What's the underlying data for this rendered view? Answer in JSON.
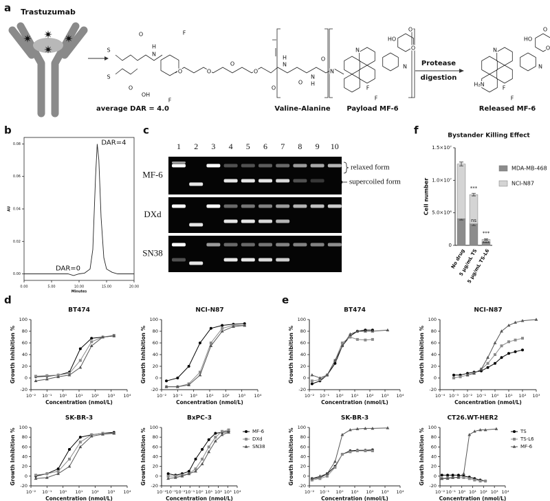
{
  "panel_labels": [
    "a",
    "b",
    "c",
    "d",
    "e",
    "f"
  ],
  "scheme": {
    "antibody": "Trastuzumab",
    "dar": "average DAR = 4.0",
    "linker": "Valine-Alanine",
    "payload": "Payload MF-6",
    "protease": "Protease",
    "digestion": "digestion",
    "released": "Released MF-6",
    "atoms": [
      "S",
      "S",
      "O",
      "H",
      "N",
      "OH",
      "O",
      "F",
      "F",
      "O",
      "O",
      "O",
      "O",
      "O",
      "H",
      "N",
      "O",
      "O",
      "H",
      "N",
      "N",
      "N",
      "N",
      "HO",
      "O",
      "O",
      "F",
      "F",
      "N",
      "N",
      "HO",
      "O",
      "O",
      "H₂N",
      "F",
      "F"
    ]
  },
  "gel": {
    "lanes": [
      "1",
      "2",
      "3",
      "4",
      "5",
      "6",
      "7",
      "8",
      "9",
      "10"
    ],
    "rows": [
      "MF-6",
      "DXd",
      "SN38"
    ],
    "relaxed": "relaxed form",
    "supercoiled": "supercoiled form"
  },
  "chart_data": [
    {
      "type": "line",
      "frame": true,
      "xlabel": "Minutes",
      "ylabel": "AU",
      "annotations": [
        "DAR=4",
        "DAR=0"
      ],
      "x": [
        0,
        1,
        2,
        3,
        4,
        5,
        6,
        7,
        8,
        9,
        10,
        11,
        12,
        12.5,
        13,
        13.3,
        13.6,
        14,
        14.5,
        15,
        16,
        17,
        18,
        19,
        20
      ],
      "series": [
        {
          "color": "#222222",
          "values": [
            0,
            0,
            0,
            0,
            0,
            0,
            0,
            0,
            0,
            -0.001,
            0,
            0.0005,
            0.003,
            0.015,
            0.06,
            0.08,
            0.07,
            0.035,
            0.01,
            0.003,
            0.001,
            0,
            0,
            0,
            0
          ]
        }
      ],
      "xlim": [
        0,
        20
      ],
      "ylim": [
        -0.004,
        0.084
      ],
      "xticks": [
        {
          "value": 0,
          "label": "0.00"
        },
        {
          "value": 5,
          "label": "5.00"
        },
        {
          "value": 10,
          "label": "10.00"
        },
        {
          "value": 15,
          "label": "15.00"
        },
        {
          "value": 20,
          "label": "20.00"
        }
      ],
      "yticks": [
        {
          "value": 0,
          "label": "0.00"
        },
        {
          "value": 0.02,
          "label": "0.02"
        },
        {
          "value": 0.04,
          "label": "0.04"
        },
        {
          "value": 0.06,
          "label": "0.06"
        },
        {
          "value": 0.08,
          "label": "0.08"
        }
      ]
    },
    {
      "type": "bar",
      "stacked": true,
      "title": "Bystander Killing Effect",
      "ylabel": "Cell number",
      "categories": [
        "No drug",
        "5 μg/mL TS",
        "5 μg/mL TS-L6"
      ],
      "series": [
        {
          "name": "MDA-MB-468",
          "color": "#8c8c8c",
          "values": [
            4100000,
            3300000,
            500000
          ],
          "errors": [
            200000,
            250000,
            50000
          ]
        },
        {
          "name": "NCI-N87",
          "color": "#d4d4d4",
          "values": [
            8400000,
            4500000,
            400000
          ],
          "errors": [
            300000,
            200000,
            100000
          ]
        }
      ],
      "ylim": [
        0,
        15000000
      ],
      "yticks": [
        0,
        {
          "value": 5000000,
          "label": "5.0×10⁶"
        },
        {
          "value": 10000000,
          "label": "1.0×10⁷"
        },
        {
          "value": 15000000,
          "label": "1.5×10⁷"
        }
      ],
      "annotations": [
        "***",
        "ns",
        "***",
        "***"
      ]
    },
    {
      "type": "line",
      "title": "BT474",
      "xscale": "log",
      "xlabel": "Concentration (nmol/L)",
      "ylabel": "Growth Inhibition %",
      "x": [
        0.02,
        0.1,
        0.5,
        2.5,
        12,
        60,
        300,
        1500
      ],
      "series": [
        {
          "color": "#000000",
          "marker": "circle",
          "values": [
            2,
            3,
            5,
            10,
            50,
            68,
            70,
            72
          ]
        },
        {
          "color": "#8a8a8a",
          "marker": "square",
          "values": [
            3,
            4,
            5,
            8,
            30,
            62,
            70,
            73
          ]
        },
        {
          "color": "#555555",
          "marker": "triangle",
          "values": [
            -5,
            -2,
            2,
            5,
            18,
            55,
            70,
            72
          ]
        }
      ],
      "xlim": [
        0.01,
        10000
      ],
      "ylim": [
        -20,
        100
      ],
      "xticks": [
        {
          "value": 0.01,
          "label": "10⁻²"
        },
        {
          "value": 0.1,
          "label": "10⁻¹"
        },
        {
          "value": 1,
          "label": "10⁰"
        },
        {
          "value": 10,
          "label": "10¹"
        },
        {
          "value": 100,
          "label": "10²"
        },
        {
          "value": 1000,
          "label": "10³"
        },
        {
          "value": 10000,
          "label": "10⁴"
        }
      ],
      "yticks": [
        -20,
        0,
        20,
        40,
        60,
        80,
        100
      ]
    },
    {
      "type": "line",
      "title": "NCI-N87",
      "xscale": "log",
      "xlabel": "Concentration (nmol/L)",
      "ylabel": "Growth Inhibition %",
      "x": [
        0.02,
        0.1,
        0.5,
        2.5,
        12,
        60,
        300,
        1500
      ],
      "series": [
        {
          "color": "#000000",
          "marker": "circle",
          "values": [
            -5,
            0,
            20,
            60,
            85,
            90,
            92,
            93
          ]
        },
        {
          "color": "#8a8a8a",
          "marker": "square",
          "values": [
            -15,
            -15,
            -10,
            10,
            60,
            85,
            90,
            90
          ]
        },
        {
          "color": "#555555",
          "marker": "triangle",
          "values": [
            -15,
            -15,
            -12,
            5,
            55,
            80,
            88,
            90
          ]
        }
      ],
      "xlim": [
        0.01,
        10000
      ],
      "ylim": [
        -20,
        100
      ],
      "xticks": [
        {
          "value": 0.01,
          "label": "10⁻²"
        },
        {
          "value": 0.1,
          "label": "10⁻¹"
        },
        {
          "value": 1,
          "label": "10⁰"
        },
        {
          "value": 10,
          "label": "10¹"
        },
        {
          "value": 100,
          "label": "10²"
        },
        {
          "value": 1000,
          "label": "10³"
        },
        {
          "value": 10000,
          "label": "10⁴"
        }
      ],
      "yticks": [
        -20,
        0,
        20,
        40,
        60,
        80,
        100
      ]
    },
    {
      "type": "line",
      "title": "SK-BR-3",
      "xscale": "log",
      "xlabel": "Concentration (nmol/L)",
      "ylabel": "Growth Inhibition %",
      "x": [
        0.02,
        0.1,
        0.5,
        2.5,
        12,
        60,
        300,
        1500
      ],
      "series": [
        {
          "color": "#000000",
          "marker": "circle",
          "values": [
            0,
            5,
            15,
            55,
            80,
            85,
            88,
            90
          ]
        },
        {
          "color": "#8a8a8a",
          "marker": "square",
          "values": [
            2,
            5,
            10,
            35,
            70,
            85,
            88,
            88
          ]
        },
        {
          "color": "#555555",
          "marker": "triangle",
          "values": [
            -5,
            -3,
            5,
            20,
            60,
            82,
            86,
            88
          ]
        }
      ],
      "xlim": [
        0.01,
        10000
      ],
      "ylim": [
        -20,
        100
      ],
      "xticks": [
        {
          "value": 0.01,
          "label": "10⁻²"
        },
        {
          "value": 0.1,
          "label": "10⁻¹"
        },
        {
          "value": 1,
          "label": "10⁰"
        },
        {
          "value": 10,
          "label": "10¹"
        },
        {
          "value": 100,
          "label": "10²"
        },
        {
          "value": 1000,
          "label": "10³"
        },
        {
          "value": 10000,
          "label": "10⁴"
        }
      ],
      "yticks": [
        -20,
        0,
        20,
        40,
        60,
        80,
        100
      ]
    },
    {
      "type": "line",
      "title": "BxPC-3",
      "xscale": "log",
      "xlabel": "Concentration (nmol/L)",
      "ylabel": "Growth Inhibition %",
      "legend": "right",
      "x": [
        0.0005,
        0.003,
        0.015,
        0.08,
        0.4,
        2,
        10,
        50,
        250,
        1250
      ],
      "series": [
        {
          "name": "MF-6",
          "color": "#000000",
          "marker": "circle",
          "values": [
            5,
            2,
            5,
            10,
            35,
            55,
            75,
            88,
            90,
            92
          ]
        },
        {
          "name": "DXd",
          "color": "#8a8a8a",
          "marker": "square",
          "values": [
            0,
            0,
            2,
            5,
            15,
            35,
            60,
            80,
            92,
            95
          ]
        },
        {
          "name": "SN38",
          "color": "#555555",
          "marker": "triangle",
          "values": [
            -5,
            -3,
            0,
            5,
            10,
            25,
            50,
            72,
            85,
            90
          ]
        }
      ],
      "xlim": [
        0.0001,
        10000
      ],
      "ylim": [
        -20,
        100
      ],
      "xticks": [
        {
          "value": 0.0001,
          "label": "10⁻⁴"
        },
        {
          "value": 0.001,
          "label": "10⁻³"
        },
        {
          "value": 0.01,
          "label": "10⁻²"
        },
        {
          "value": 0.1,
          "label": "10⁻¹"
        },
        {
          "value": 1,
          "label": "10⁰"
        },
        {
          "value": 10,
          "label": "10¹"
        },
        {
          "value": 100,
          "label": "10²"
        },
        {
          "value": 1000,
          "label": "10³"
        },
        {
          "value": 10000,
          "label": "10⁴"
        }
      ],
      "yticks": [
        -20,
        0,
        20,
        40,
        60,
        80,
        100
      ]
    },
    {
      "type": "line",
      "title": "BT474",
      "xscale": "log",
      "xlabel": "Concentration (nmol/L)",
      "ylabel": "Growth Inhibition %",
      "x": [
        0.015,
        0.05,
        0.15,
        0.5,
        1.5,
        5,
        15,
        50,
        150,
        1500
      ],
      "series": [
        {
          "color": "#000000",
          "marker": "circle",
          "values": [
            -10,
            -5,
            5,
            25,
            55,
            72,
            80,
            82,
            82,
            null
          ]
        },
        {
          "color": "#8a8a8a",
          "marker": "square",
          "values": [
            -5,
            -3,
            5,
            30,
            60,
            70,
            66,
            65,
            66,
            null
          ]
        },
        {
          "color": "#555555",
          "marker": "triangle",
          "values": [
            5,
            0,
            5,
            30,
            55,
            75,
            80,
            80,
            80,
            82
          ]
        }
      ],
      "xlim": [
        0.01,
        10000
      ],
      "ylim": [
        -20,
        100
      ],
      "xticks": [
        {
          "value": 0.01,
          "label": "10⁻²"
        },
        {
          "value": 0.1,
          "label": "10⁻¹"
        },
        {
          "value": 1,
          "label": "10⁰"
        },
        {
          "value": 10,
          "label": "10¹"
        },
        {
          "value": 100,
          "label": "10²"
        },
        {
          "value": 1000,
          "label": "10³"
        },
        {
          "value": 10000,
          "label": "10⁴"
        }
      ],
      "yticks": [
        -20,
        0,
        20,
        40,
        60,
        80,
        100
      ]
    },
    {
      "type": "line",
      "title": "NCI-N87",
      "xscale": "log",
      "xlabel": "Concentration (nmol/L)",
      "ylabel": "Growth Inhibition %",
      "x": [
        0.001,
        0.003,
        0.01,
        0.03,
        0.1,
        0.3,
        1,
        3,
        10,
        30,
        100,
        1000
      ],
      "series": [
        {
          "color": "#000000",
          "marker": "circle",
          "values": [
            5,
            5,
            8,
            10,
            12,
            18,
            25,
            35,
            42,
            45,
            48,
            null
          ]
        },
        {
          "color": "#8a8a8a",
          "marker": "square",
          "values": [
            0,
            2,
            5,
            8,
            15,
            25,
            40,
            55,
            62,
            65,
            68,
            null
          ]
        },
        {
          "color": "#555555",
          "marker": "triangle",
          "values": [
            null,
            null,
            5,
            8,
            15,
            35,
            60,
            80,
            90,
            95,
            98,
            100
          ]
        }
      ],
      "xlim": [
        0.0001,
        1000
      ],
      "ylim": [
        -20,
        100
      ],
      "xticks": [
        {
          "value": 0.0001,
          "label": "10⁻⁴"
        },
        {
          "value": 0.001,
          "label": "10⁻³"
        },
        {
          "value": 0.01,
          "label": "10⁻²"
        },
        {
          "value": 0.1,
          "label": "10⁻¹"
        },
        {
          "value": 1,
          "label": "10⁰"
        },
        {
          "value": 10,
          "label": "10¹"
        },
        {
          "value": 100,
          "label": "10²"
        },
        {
          "value": 1000,
          "label": "10³"
        }
      ],
      "yticks": [
        -20,
        0,
        20,
        40,
        60,
        80,
        100
      ]
    },
    {
      "type": "line",
      "title": "SK-BR-3",
      "xscale": "log",
      "xlabel": "Concentration (nmol/L)",
      "ylabel": "Growth Inhibition %",
      "x": [
        0.015,
        0.05,
        0.15,
        0.5,
        1.5,
        5,
        15,
        50,
        150,
        1500
      ],
      "series": [
        {
          "color": "#000000",
          "marker": "circle",
          "values": [
            -5,
            -3,
            5,
            20,
            45,
            52,
            53,
            53,
            54,
            null
          ]
        },
        {
          "color": "#8a8a8a",
          "marker": "square",
          "values": [
            -8,
            -5,
            0,
            18,
            45,
            50,
            52,
            52,
            52,
            null
          ]
        },
        {
          "color": "#555555",
          "marker": "triangle",
          "values": [
            -5,
            0,
            5,
            30,
            85,
            95,
            97,
            98,
            98,
            99
          ]
        }
      ],
      "xlim": [
        0.01,
        10000
      ],
      "ylim": [
        -20,
        100
      ],
      "xticks": [
        {
          "value": 0.01,
          "label": "10⁻²"
        },
        {
          "value": 0.1,
          "label": "10⁻¹"
        },
        {
          "value": 1,
          "label": "10⁰"
        },
        {
          "value": 10,
          "label": "10¹"
        },
        {
          "value": 100,
          "label": "10²"
        },
        {
          "value": 1000,
          "label": "10³"
        },
        {
          "value": 10000,
          "label": "10⁴"
        }
      ],
      "yticks": [
        -20,
        0,
        20,
        40,
        60,
        80,
        100
      ]
    },
    {
      "type": "line",
      "title": "CT26.WT-HER2",
      "xscale": "log",
      "xlabel": "Concentration (nmol/L)",
      "ylabel": "Growth Inhibition %",
      "legend": "right",
      "x": [
        0.015,
        0.05,
        0.15,
        0.5,
        1.5,
        5,
        15,
        50,
        150,
        1500
      ],
      "series": [
        {
          "name": "TS",
          "color": "#000000",
          "marker": "circle",
          "values": [
            2,
            2,
            2,
            2,
            0,
            -2,
            -5,
            -8,
            -10,
            null
          ]
        },
        {
          "name": "TS-L6",
          "color": "#8a8a8a",
          "marker": "square",
          "values": [
            -5,
            -3,
            -3,
            -3,
            -3,
            -5,
            -8,
            -10,
            -10,
            null
          ]
        },
        {
          "name": "MF-6",
          "color": "#555555",
          "marker": "triangle",
          "values": [
            -5,
            -5,
            -3,
            -2,
            5,
            85,
            92,
            95,
            95,
            97
          ]
        }
      ],
      "xlim": [
        0.01,
        10000
      ],
      "ylim": [
        -20,
        100
      ],
      "xticks": [
        {
          "value": 0.01,
          "label": "10⁻²"
        },
        {
          "value": 0.1,
          "label": "10⁻¹"
        },
        {
          "value": 1,
          "label": "10⁰"
        },
        {
          "value": 10,
          "label": "10¹"
        },
        {
          "value": 100,
          "label": "10²"
        },
        {
          "value": 1000,
          "label": "10³"
        },
        {
          "value": 10000,
          "label": "10⁴"
        }
      ],
      "yticks": [
        -20,
        0,
        20,
        40,
        60,
        80,
        100
      ]
    }
  ]
}
